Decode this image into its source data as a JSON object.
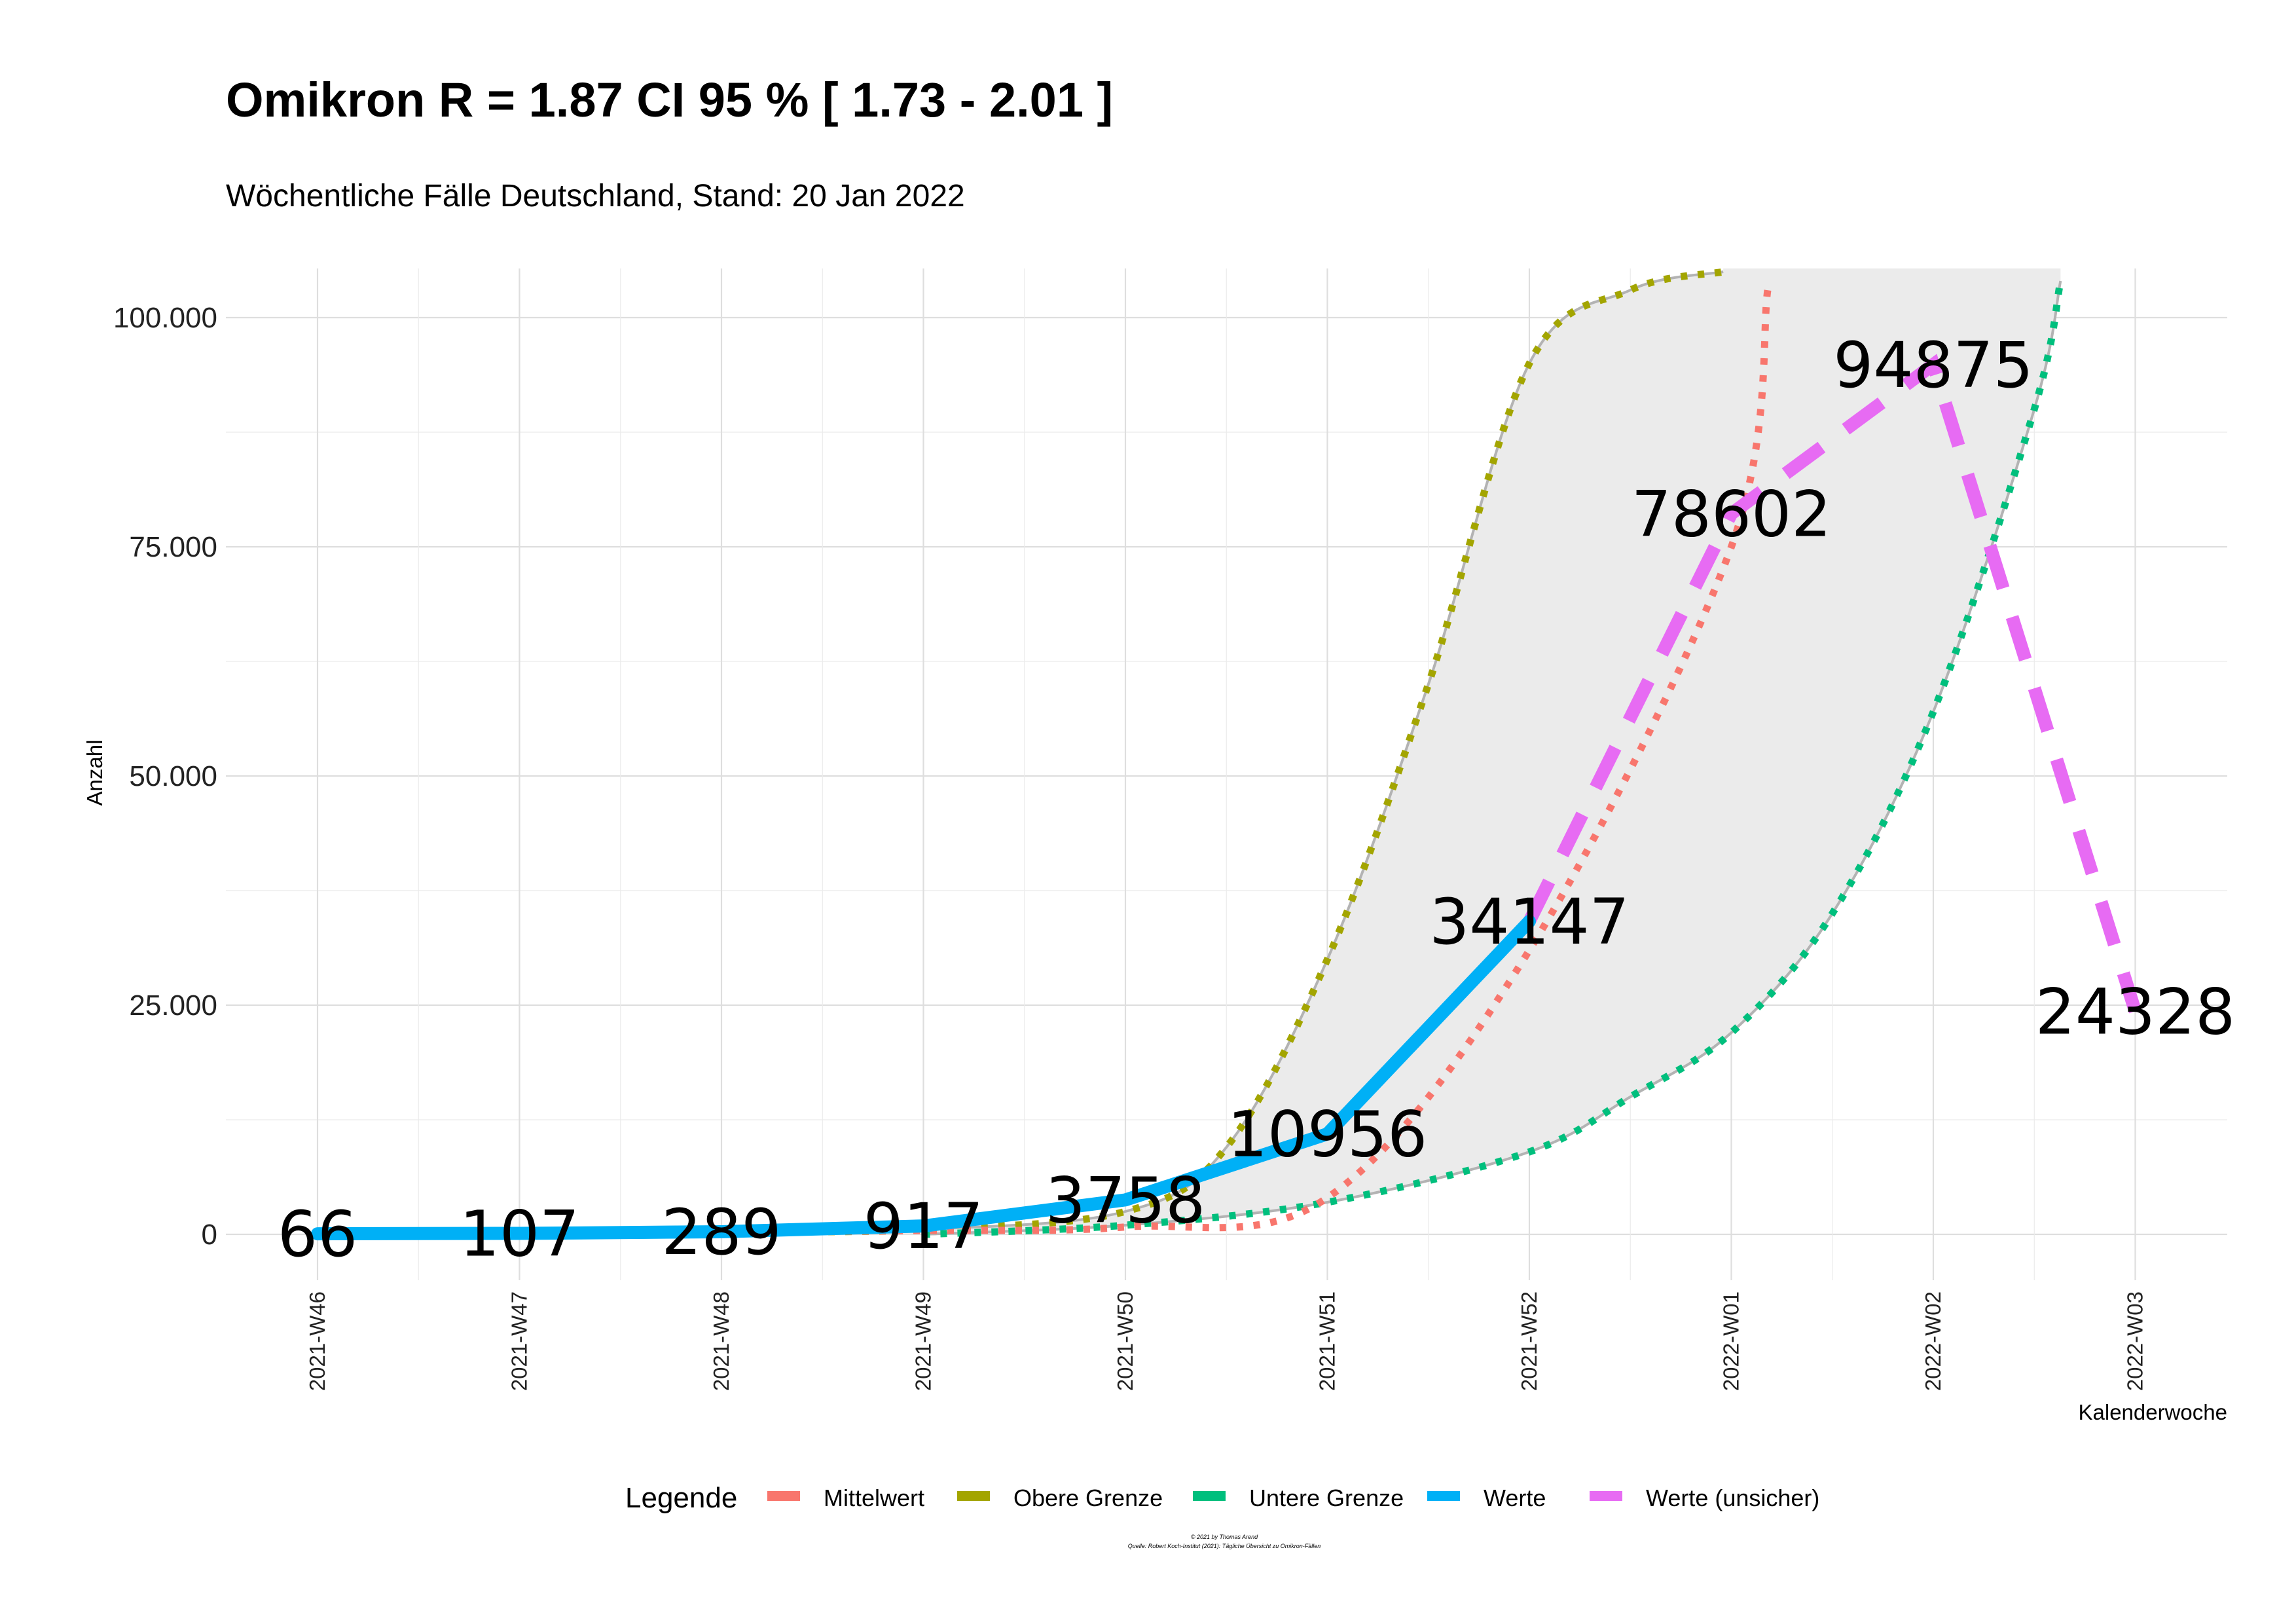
{
  "chart_data": {
    "type": "line",
    "title": "Omikron R = 1.87 CI 95 % [ 1.73 - 2.01 ]",
    "subtitle": "Wöchentliche Fälle Deutschland, Stand: 20 Jan 2022",
    "xlabel": "Kalenderwoche",
    "ylabel": "Anzahl",
    "categories": [
      "2021-W46",
      "2021-W47",
      "2021-W48",
      "2021-W49",
      "2021-W50",
      "2021-W51",
      "2021-W52",
      "2022-W01",
      "2022-W02",
      "2022-W03"
    ],
    "yticks": [
      0,
      25000,
      50000,
      75000,
      100000
    ],
    "ytick_labels": [
      "0",
      "25.000",
      "50.000",
      "75.000",
      "100.000"
    ],
    "ylim": [
      -5000,
      105000
    ],
    "grid": true,
    "legend_position": "bottom",
    "legend_title": "Legende",
    "series": [
      {
        "name": "Mittelwert",
        "color": "#F8766D",
        "style": "dotted",
        "x": [
          0,
          1,
          2,
          3,
          4,
          5,
          6,
          7,
          7.18
        ],
        "values": [
          66,
          123,
          231,
          432,
          808,
          4000,
          31000,
          75000,
          103000
        ]
      },
      {
        "name": "Obere Grenze",
        "color": "#A3A500",
        "style": "dotted",
        "x": [
          0,
          1,
          2,
          3,
          4,
          4.5,
          5,
          5.5,
          6,
          6.5,
          6.96
        ],
        "values": [
          66,
          133,
          268,
          540,
          2500,
          9500,
          30000,
          60000,
          95000,
          103000,
          105000
        ]
      },
      {
        "name": "Untere Grenze",
        "color": "#00BF7D",
        "style": "dotted",
        "x": [
          3,
          4,
          5,
          6,
          6.5,
          7,
          7.5,
          8,
          8.5,
          8.63
        ],
        "values": [
          0,
          1000,
          3500,
          9000,
          15000,
          22000,
          35000,
          57000,
          90000,
          104000
        ]
      },
      {
        "name": "Werte",
        "color": "#00B0F6",
        "style": "solid",
        "x": [
          0,
          1,
          2,
          3,
          4,
          5,
          6
        ],
        "values": [
          66,
          107,
          289,
          917,
          3758,
          10956,
          34147
        ]
      },
      {
        "name": "Werte (unsicher)",
        "color": "#E76BF3",
        "style": "dashed",
        "x": [
          6,
          7,
          8,
          9
        ],
        "values": [
          34147,
          78602,
          94875,
          24328
        ]
      }
    ],
    "data_labels": [
      {
        "x": 0,
        "y": 66,
        "text": "66"
      },
      {
        "x": 1,
        "y": 107,
        "text": "107"
      },
      {
        "x": 2,
        "y": 289,
        "text": "289"
      },
      {
        "x": 3,
        "y": 917,
        "text": "917"
      },
      {
        "x": 4,
        "y": 3758,
        "text": "3758"
      },
      {
        "x": 5,
        "y": 10956,
        "text": "10956"
      },
      {
        "x": 6,
        "y": 34147,
        "text": "34147"
      },
      {
        "x": 7,
        "y": 78602,
        "text": "78602"
      },
      {
        "x": 8,
        "y": 94875,
        "text": "94875"
      },
      {
        "x": 9,
        "y": 24328,
        "text": "24328"
      }
    ]
  },
  "caption": {
    "line1": "© 2021 by Thomas Arend",
    "line2": "Quelle: Robert Koch-Institut (2021): Tägliche Übersicht zu Omikron-Fällen"
  }
}
